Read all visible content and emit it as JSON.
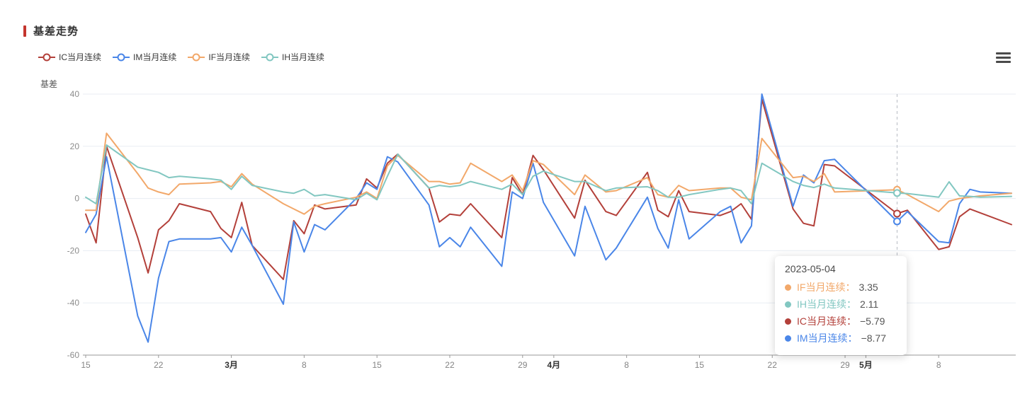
{
  "header": {
    "title": "基差走势",
    "accent_color": "#c4352e"
  },
  "toolbox": {
    "menu_icon": "hamburger-menu",
    "color": "#4a4a4a"
  },
  "legend": {
    "items": [
      {
        "label": "IC当月连续",
        "color": "#b3403a"
      },
      {
        "label": "IM当月连续",
        "color": "#4a86e8"
      },
      {
        "label": "IF当月连续",
        "color": "#f2a86a"
      },
      {
        "label": "IH当月连续",
        "color": "#82c7c1"
      }
    ]
  },
  "y_axis": {
    "name": "基差",
    "tick_values": [
      40,
      20,
      0,
      -20,
      -40,
      -60
    ]
  },
  "x_axis": {
    "ticks": [
      {
        "label": "15",
        "date": "2023-02-15",
        "month": false
      },
      {
        "label": "22",
        "date": "2023-02-22",
        "month": false
      },
      {
        "label": "3月",
        "date": "2023-03-01",
        "month": true
      },
      {
        "label": "8",
        "date": "2023-03-08",
        "month": false
      },
      {
        "label": "15",
        "date": "2023-03-15",
        "month": false
      },
      {
        "label": "22",
        "date": "2023-03-22",
        "month": false
      },
      {
        "label": "29",
        "date": "2023-03-29",
        "month": false
      },
      {
        "label": "4月",
        "date": "2023-04-01",
        "month": true
      },
      {
        "label": "8",
        "date": "2023-04-08",
        "month": false
      },
      {
        "label": "15",
        "date": "2023-04-15",
        "month": false
      },
      {
        "label": "22",
        "date": "2023-04-22",
        "month": false
      },
      {
        "label": "29",
        "date": "2023-04-29",
        "month": false
      },
      {
        "label": "5月",
        "date": "2023-05-01",
        "month": true
      },
      {
        "label": "8",
        "date": "2023-05-08",
        "month": false
      }
    ]
  },
  "tooltip": {
    "date": "2023-05-04",
    "rows": [
      {
        "name": "IF当月连续：",
        "value": "3.35",
        "color": "#f2a86a"
      },
      {
        "name": "IH当月连续：",
        "value": "2.11",
        "color": "#82c7c1"
      },
      {
        "name": "IC当月连续：",
        "value": "−5.79",
        "color": "#b3403a"
      },
      {
        "name": "IM当月连续：",
        "value": "−8.77",
        "color": "#4a86e8"
      }
    ]
  },
  "chart_data": {
    "type": "line",
    "title": "基差走势",
    "ylabel": "基差",
    "ylim": [
      -60,
      40
    ],
    "y_tick_interval": 20,
    "grid": true,
    "legend_position": "top-left",
    "x_type": "time",
    "crosshair_date": "2023-05-04",
    "dates": [
      "2023-02-15",
      "2023-02-16",
      "2023-02-17",
      "2023-02-20",
      "2023-02-21",
      "2023-02-22",
      "2023-02-23",
      "2023-02-24",
      "2023-02-27",
      "2023-02-28",
      "2023-03-01",
      "2023-03-02",
      "2023-03-03",
      "2023-03-06",
      "2023-03-07",
      "2023-03-08",
      "2023-03-09",
      "2023-03-10",
      "2023-03-13",
      "2023-03-14",
      "2023-03-15",
      "2023-03-16",
      "2023-03-17",
      "2023-03-20",
      "2023-03-21",
      "2023-03-22",
      "2023-03-23",
      "2023-03-24",
      "2023-03-27",
      "2023-03-28",
      "2023-03-29",
      "2023-03-30",
      "2023-03-31",
      "2023-04-03",
      "2023-04-04",
      "2023-04-06",
      "2023-04-07",
      "2023-04-10",
      "2023-04-11",
      "2023-04-12",
      "2023-04-13",
      "2023-04-14",
      "2023-04-17",
      "2023-04-18",
      "2023-04-19",
      "2023-04-20",
      "2023-04-21",
      "2023-04-24",
      "2023-04-25",
      "2023-04-26",
      "2023-04-27",
      "2023-04-28",
      "2023-05-04",
      "2023-05-05",
      "2023-05-08",
      "2023-05-09",
      "2023-05-10",
      "2023-05-11",
      "2023-05-12",
      "2023-05-15"
    ],
    "series": [
      {
        "name": "IC当月连续",
        "color": "#b3403a",
        "values": [
          -6,
          -17,
          20,
          -15,
          -28.5,
          -12,
          -8.5,
          -2,
          -5,
          -11.5,
          -15,
          -1.5,
          -18,
          -31,
          -8.5,
          -13.5,
          -2.5,
          -4,
          -2.5,
          7.5,
          4,
          13.5,
          17,
          4,
          -9,
          -6,
          -6.5,
          -2,
          -15,
          8,
          1.5,
          16.5,
          11,
          -7.5,
          7,
          -5,
          -6.5,
          10,
          -4.5,
          -7,
          3,
          -5,
          -6.5,
          -5,
          -2,
          -8,
          38,
          -4,
          -9.5,
          -10.5,
          13,
          12.5,
          -5.79,
          -4.5,
          -19.5,
          -18.5,
          -7,
          -4,
          -5.5,
          -10
        ]
      },
      {
        "name": "IM当月连续",
        "color": "#4a86e8",
        "values": [
          -13,
          -6,
          16,
          -45,
          -55,
          -30.5,
          -16.5,
          -15.5,
          -15.5,
          -15,
          -20.5,
          -11,
          -18,
          -40.5,
          -9,
          -20.5,
          -10,
          -12,
          0,
          6,
          3.5,
          16,
          14,
          -2.5,
          -18.5,
          -15,
          -18.5,
          -11,
          -26,
          2.5,
          0,
          13.5,
          -1.5,
          -22,
          -3,
          -23.5,
          -19,
          0.5,
          -11.5,
          -19,
          -0.5,
          -15.5,
          -5,
          -3,
          -17,
          -10.5,
          40,
          -3,
          9,
          6,
          14.5,
          15,
          -8.77,
          -5,
          -16.5,
          -17,
          -2,
          3.5,
          2.5,
          2
        ]
      },
      {
        "name": "IF当月连续",
        "color": "#f2a86a",
        "values": [
          -4.5,
          -4.5,
          25,
          9.5,
          4,
          2.5,
          1.5,
          5.5,
          6,
          6.5,
          4.5,
          9.5,
          5.5,
          -2,
          -4,
          -6,
          -3,
          -2,
          0.5,
          2.5,
          0,
          12.5,
          16.5,
          6.5,
          6.5,
          5.5,
          6,
          13.5,
          6.5,
          9,
          3,
          14.5,
          13,
          1.5,
          9,
          2.5,
          3,
          8,
          1.5,
          0.5,
          5,
          3,
          4,
          4,
          0.5,
          -0.5,
          23,
          8,
          8.5,
          6.5,
          9.5,
          2.5,
          3.35,
          1.5,
          -5,
          -1,
          0,
          0.5,
          1,
          2
        ]
      },
      {
        "name": "IH当月连续",
        "color": "#82c7c1",
        "values": [
          0.5,
          -2,
          20.5,
          12,
          11,
          10,
          8,
          8.5,
          7.5,
          7,
          3.5,
          8.5,
          5,
          2.5,
          2,
          3.5,
          1,
          1.5,
          -0.5,
          2,
          -0.5,
          8.5,
          17,
          4,
          5,
          4.5,
          5,
          6.5,
          3.5,
          5.5,
          1.5,
          8.5,
          10.5,
          6.5,
          6.5,
          3,
          4,
          4.5,
          3,
          0.5,
          0.5,
          1.5,
          3.5,
          4,
          3,
          -2,
          13.5,
          6.5,
          5,
          4.2,
          5.5,
          4,
          2.11,
          1.9,
          0.5,
          6.4,
          1,
          0.8,
          0.5,
          0.8
        ]
      }
    ]
  }
}
